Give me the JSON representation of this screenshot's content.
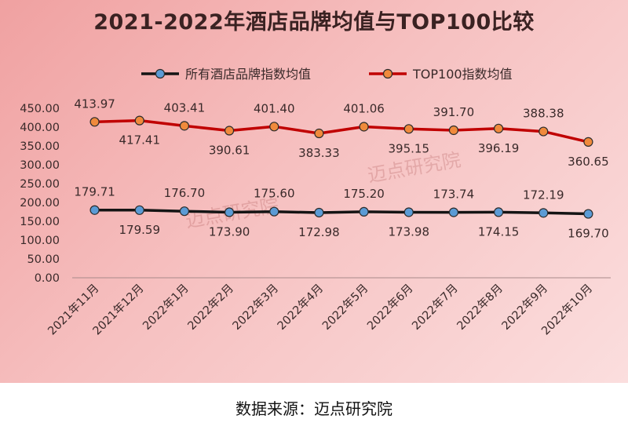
{
  "chart_data": {
    "type": "line",
    "title": "2021-2022年酒店品牌均值与TOP100比较",
    "categories": [
      "2021年11月",
      "2021年12月",
      "2022年1月",
      "2022年2月",
      "2022年3月",
      "2022年4月",
      "2022年5月",
      "2022年6月",
      "2022年7月",
      "2022年8月",
      "2022年9月",
      "2022年10月"
    ],
    "series": [
      {
        "name": "所有酒店品牌指数均值",
        "color": "#141414",
        "marker_color": "#5b9bd5",
        "values": [
          179.71,
          179.59,
          176.7,
          173.9,
          175.6,
          172.98,
          175.2,
          173.98,
          173.74,
          174.15,
          172.19,
          169.7
        ],
        "labels": [
          "179.71",
          "179.59",
          "176.70",
          "173.90",
          "175.60",
          "172.98",
          "175.20",
          "173.98",
          "173.74",
          "174.15",
          "172.19",
          "169.70"
        ]
      },
      {
        "name": "TOP100指数均值",
        "color": "#c00000",
        "marker_color": "#f08a3c",
        "values": [
          413.97,
          417.41,
          403.41,
          390.61,
          401.4,
          383.33,
          401.06,
          395.15,
          391.7,
          396.19,
          388.38,
          360.65
        ],
        "labels": [
          "413.97",
          "417.41",
          "403.41",
          "390.61",
          "401.40",
          "383.33",
          "401.06",
          "395.15",
          "391.70",
          "396.19",
          "388.38",
          "360.65"
        ]
      }
    ],
    "yticks": [
      "0.00",
      "50.00",
      "100.00",
      "150.00",
      "200.00",
      "250.00",
      "300.00",
      "350.00",
      "400.00",
      "450.00"
    ],
    "ylim": [
      0,
      450
    ],
    "grid": false,
    "legend_position": "top"
  },
  "watermark": {
    "text": "迈点研究院"
  },
  "source_note": "数据来源：迈点研究院"
}
